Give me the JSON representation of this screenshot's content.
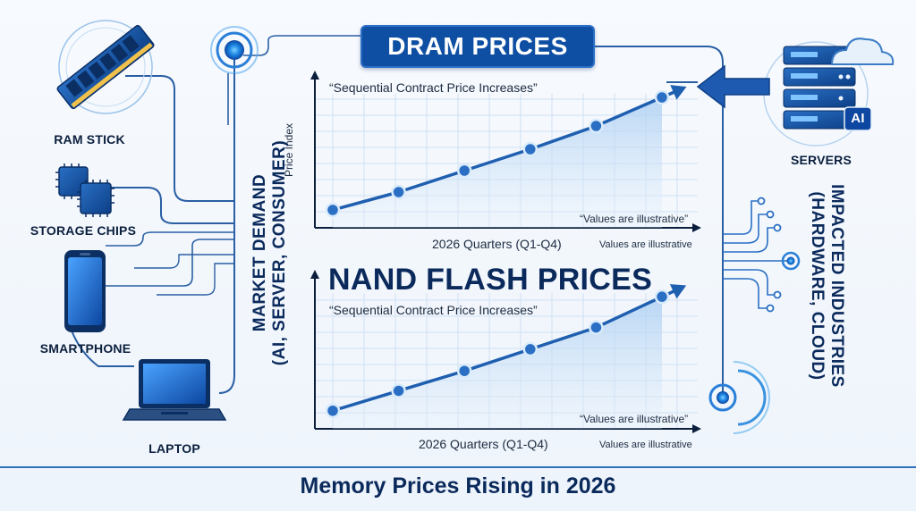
{
  "title": "DRAM PRICES",
  "footer": "Memory Prices Rising in 2026",
  "devices": {
    "ram": "RAM STICK",
    "storage": "STORAGE CHIPS",
    "smartphone": "SMARTPHONE",
    "laptop": "LAPTOP",
    "servers": "SERVERS",
    "ai_badge": "AI"
  },
  "left_vertical": {
    "line1": "MARKET DEMAND",
    "line2": "(AI, SERVER, CONSUMER)"
  },
  "right_vertical": {
    "line1": "IMPACTED INDUSTRIES",
    "line2": "(HARDWARE, CLOUD)"
  },
  "colors": {
    "accent": "#0f4fa3",
    "line": "#1f5fb0",
    "marker": "#2a6fc4",
    "footer": "#0b2a5c"
  },
  "chart_data": [
    {
      "type": "line",
      "title": "DRAM PRICES",
      "subtitle": "“Sequential Contract Price Increases”",
      "xlabel": "2026 Quarters (Q1-Q4)",
      "ylabel": "Price Index",
      "note": "“Values are illustrative”",
      "note2": "Values are illustrative",
      "values": [
        1,
        2,
        3.2,
        4.4,
        5.7,
        7.3
      ],
      "ylim": [
        0,
        8
      ],
      "grid": true
    },
    {
      "type": "line",
      "title": "NAND FLASH PRICES",
      "subtitle": "“Sequential Contract Price Increases”",
      "xlabel": "2026 Quarters (Q1-Q4)",
      "note": "“Values are illustrative”",
      "note2": "Values are illustrative",
      "values": [
        1,
        2.1,
        3.2,
        4.4,
        5.6,
        7.3
      ],
      "ylim": [
        0,
        8
      ],
      "grid": true
    }
  ]
}
